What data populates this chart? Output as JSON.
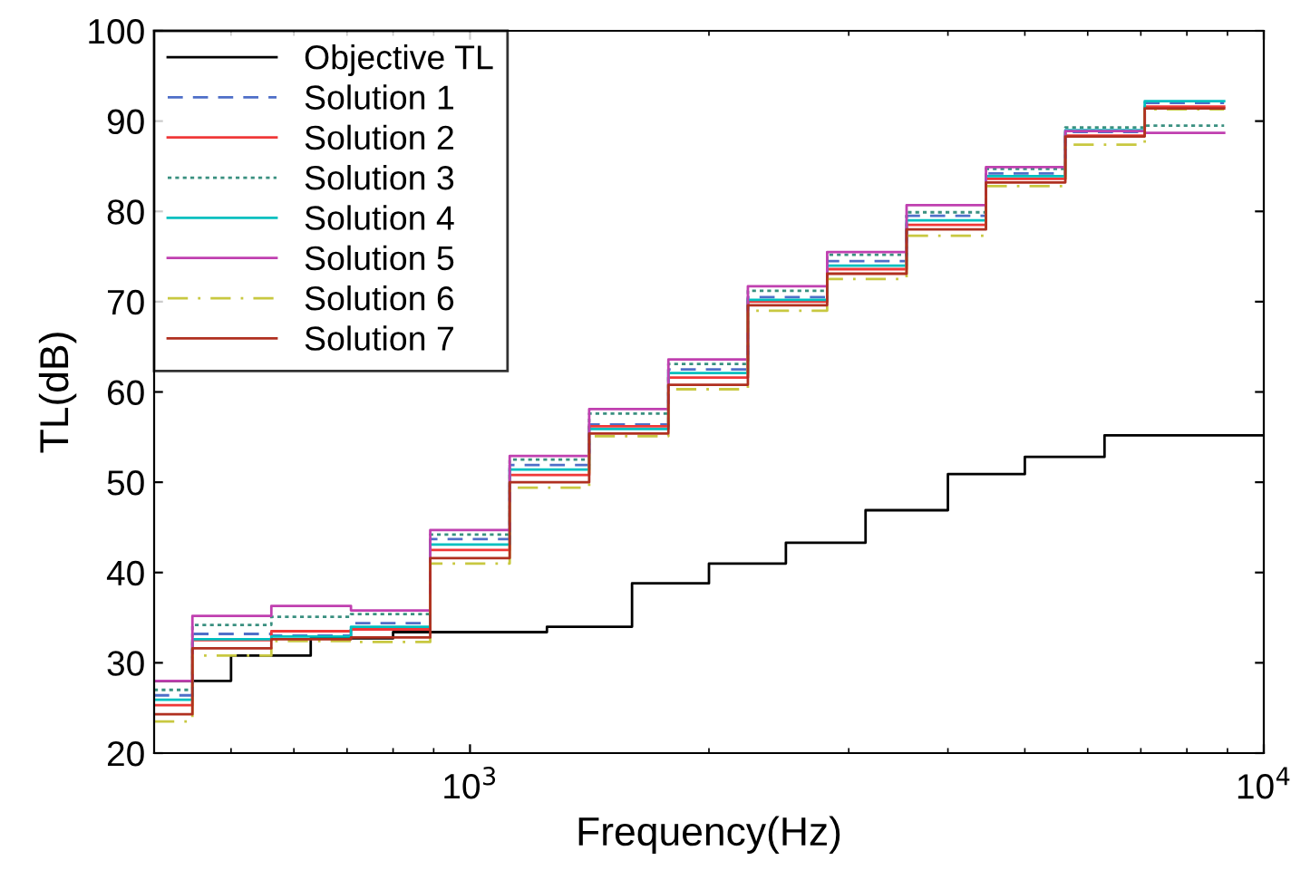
{
  "chart_data": {
    "type": "step",
    "xlabel": "Frequency(Hz)",
    "ylabel": "TL(dB)",
    "log": "x",
    "xlim": [
      400,
      10000
    ],
    "xticks": [
      {
        "value": 1000,
        "label": "10$^{3}$"
      },
      {
        "value": 10000,
        "label": "10$^{4}$"
      }
    ],
    "ylim": [
      20,
      100
    ],
    "yticks": [
      20,
      30,
      40,
      50,
      60,
      70,
      80,
      90,
      100
    ],
    "grid": false,
    "legend": "top left",
    "series": [
      {
        "name": "Objective TL",
        "color": "#000000",
        "line_style": "solid",
        "x": [
          400,
          500,
          630,
          800,
          1250,
          1600,
          2000,
          2500,
          3150,
          4000,
          5000,
          6300,
          10000
        ],
        "values": [
          28,
          30.8,
          32.7,
          33.4,
          34.0,
          38.8,
          41.0,
          43.3,
          46.9,
          50.9,
          52.8,
          55.2,
          55.2
        ]
      },
      {
        "name": "Solution 1",
        "color": "#4f6fc8",
        "line_style": "dashed",
        "x": [
          400,
          447,
          562,
          708,
          891,
          1122,
          1413,
          1778,
          2239,
          2818,
          3548,
          4467,
          5623,
          7079,
          8913
        ],
        "values": [
          26.4,
          33.2,
          33.0,
          34.4,
          43.7,
          51.9,
          56.4,
          62.5,
          70.5,
          74.5,
          79.5,
          84.2,
          88.8,
          92.0,
          92.0
        ]
      },
      {
        "name": "Solution 2",
        "color": "#f03838",
        "line_style": "solid",
        "x": [
          400,
          447,
          562,
          708,
          891,
          1122,
          1413,
          1778,
          2239,
          2818,
          3548,
          4467,
          5623,
          7079,
          8913
        ],
        "values": [
          25.3,
          32.5,
          33.5,
          33.7,
          42.5,
          50.8,
          56.2,
          61.6,
          70.0,
          73.6,
          78.5,
          83.6,
          88.4,
          91.6,
          91.6
        ]
      },
      {
        "name": "Solution 3",
        "color": "#3a9080",
        "line_style": "dotted",
        "x": [
          400,
          447,
          562,
          708,
          891,
          1122,
          1413,
          1778,
          2239,
          2818,
          3548,
          4467,
          5623,
          7079,
          8913
        ],
        "values": [
          27.0,
          34.2,
          35.1,
          35.4,
          44.2,
          52.5,
          57.6,
          63.1,
          71.2,
          75.2,
          79.9,
          84.7,
          89.3,
          89.5,
          89.5
        ]
      },
      {
        "name": "Solution 4",
        "color": "#00bfbf",
        "line_style": "solid",
        "x": [
          400,
          447,
          562,
          708,
          891,
          1122,
          1413,
          1778,
          2239,
          2818,
          3548,
          4467,
          5623,
          7079,
          8913
        ],
        "values": [
          25.9,
          32.6,
          32.9,
          34.0,
          43.1,
          51.4,
          55.9,
          62.1,
          70.2,
          74.0,
          79.0,
          83.9,
          89.0,
          92.2,
          92.2
        ]
      },
      {
        "name": "Solution 5",
        "color": "#c040b0",
        "line_style": "solid",
        "x": [
          400,
          447,
          562,
          708,
          891,
          1122,
          1413,
          1778,
          2239,
          2818,
          3548,
          4467,
          5623,
          7079,
          8913
        ],
        "values": [
          28.0,
          35.2,
          36.3,
          35.8,
          44.7,
          52.9,
          58.1,
          63.6,
          71.7,
          75.5,
          80.7,
          84.9,
          88.9,
          88.7,
          88.7
        ]
      },
      {
        "name": "Solution 6",
        "color": "#c8c840",
        "line_style": "dashdot",
        "x": [
          400,
          447,
          562,
          708,
          891,
          1122,
          1413,
          1778,
          2239,
          2818,
          3548,
          4467,
          5623,
          7079,
          8913
        ],
        "values": [
          23.5,
          30.8,
          32.4,
          32.3,
          41.0,
          49.4,
          55.1,
          60.3,
          69.0,
          72.5,
          77.3,
          82.8,
          87.4,
          91.3,
          91.3
        ]
      },
      {
        "name": "Solution 7",
        "color": "#b03020",
        "line_style": "solid",
        "x": [
          400,
          447,
          562,
          708,
          891,
          1122,
          1413,
          1778,
          2239,
          2818,
          3548,
          4467,
          5623,
          7079,
          8913
        ],
        "values": [
          24.3,
          31.6,
          32.6,
          32.8,
          41.6,
          50.0,
          55.4,
          60.8,
          69.6,
          73.1,
          78.0,
          83.2,
          88.3,
          91.4,
          91.4
        ]
      }
    ]
  }
}
